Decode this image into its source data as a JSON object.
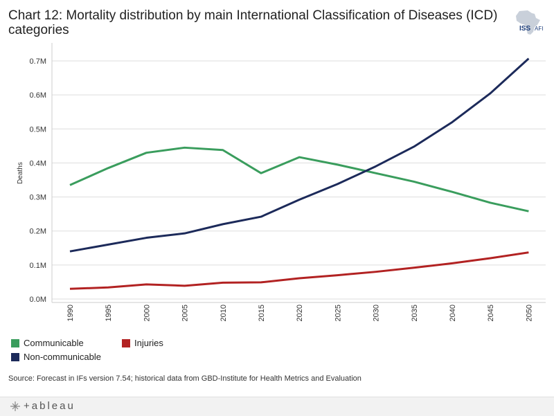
{
  "title": "Chart 12: Mortality distribution by main International Classification of Diseases (ICD) categories",
  "logo": {
    "text": "ISS",
    "subtext": "AFI"
  },
  "source": "Source: Forecast in IFs version 7.54; historical data from GBD-Institute for Health Metrics and Evaluation",
  "footer": {
    "brand": "+ableau"
  },
  "colors": {
    "communicable": "#3a9d5d",
    "non_communicable": "#1c2a5a",
    "injuries": "#b22222",
    "grid": "#dddddd"
  },
  "legend": {
    "communicable": "Communicable",
    "injuries": "Injuries",
    "non_communicable": "Non-communicable"
  },
  "chart_data": {
    "type": "line",
    "title": "Chart 12: Mortality distribution by main International Classification of Diseases (ICD) categories",
    "xlabel": "",
    "ylabel": "Deaths",
    "ylim": [
      0,
      0.7
    ],
    "yticks": [
      0,
      0.1,
      0.2,
      0.3,
      0.4,
      0.5,
      0.6,
      0.7
    ],
    "ytick_labels": [
      "0.0M",
      "0.1M",
      "0.2M",
      "0.3M",
      "0.4M",
      "0.5M",
      "0.6M",
      "0.7M"
    ],
    "x": [
      "1990",
      "1995",
      "2000",
      "2005",
      "2010",
      "2015",
      "2020",
      "2025",
      "2030",
      "2035",
      "2040",
      "2045",
      "2050"
    ],
    "series": [
      {
        "name": "Communicable",
        "key": "communicable",
        "values": [
          0.335,
          0.385,
          0.43,
          0.445,
          0.438,
          0.37,
          0.417,
          0.395,
          0.37,
          0.345,
          0.315,
          0.283,
          0.258
        ]
      },
      {
        "name": "Non-communicable",
        "key": "non_communicable",
        "values": [
          0.14,
          0.16,
          0.18,
          0.193,
          0.22,
          0.242,
          0.292,
          0.338,
          0.39,
          0.448,
          0.52,
          0.605,
          0.707
        ]
      },
      {
        "name": "Injuries",
        "key": "injuries",
        "values": [
          0.03,
          0.034,
          0.043,
          0.039,
          0.048,
          0.049,
          0.061,
          0.07,
          0.08,
          0.092,
          0.105,
          0.12,
          0.137
        ]
      }
    ]
  }
}
